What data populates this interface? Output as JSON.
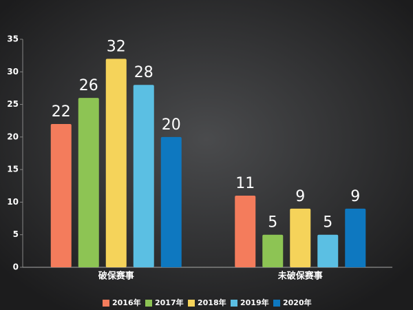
{
  "chart_data": {
    "type": "bar",
    "categories": [
      "破保赛事",
      "未破保赛事"
    ],
    "series": [
      {
        "name": "2016年",
        "color": "#f47c5c",
        "values": [
          22,
          11
        ]
      },
      {
        "name": "2017年",
        "color": "#8dc454",
        "values": [
          26,
          5
        ]
      },
      {
        "name": "2018年",
        "color": "#f5d35a",
        "values": [
          32,
          9
        ]
      },
      {
        "name": "2019年",
        "color": "#5bbfe3",
        "values": [
          28,
          5
        ]
      },
      {
        "name": "2020年",
        "color": "#0e78c0",
        "values": [
          20,
          9
        ]
      }
    ],
    "ylim": [
      0,
      35
    ],
    "yticks": [
      0,
      5,
      10,
      15,
      20,
      25,
      30,
      35
    ],
    "grid": false,
    "legend": "bottom"
  }
}
